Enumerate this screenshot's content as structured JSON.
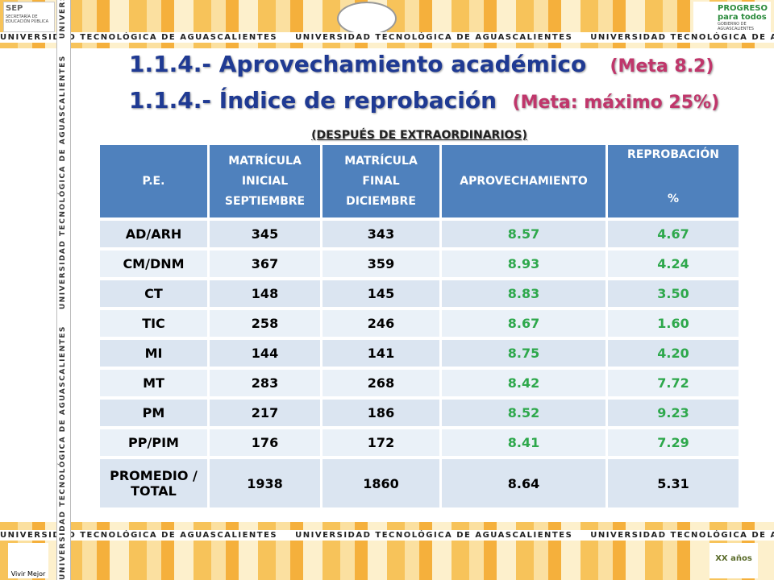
{
  "banner": {
    "text": "UNIVERSIDAD TECNOLÓGICA DE AGUASCALIENTES"
  },
  "logos": {
    "sep": "SEP",
    "sep_sub": "SECRETARÍA DE EDUCACIÓN PÚBLICA",
    "progreso": "PROGRESO para todos",
    "gobierno": "GOBIERNO DE AGUASCALIENTES",
    "vivir": "Vivir Mejor",
    "xx": "XX años"
  },
  "title": {
    "line1": "1.1.4.- Aprovechamiento académico",
    "meta1": "(Meta 8.2)",
    "line2": "1.1.4.- Índice de reprobación",
    "meta2": "(Meta: máximo 25%)",
    "subtitle": "(DESPUÉS DE EXTRAORDINARIOS)"
  },
  "table": {
    "header": [
      [
        "P.E."
      ],
      [
        "MATRÍCULA",
        "INICIAL",
        "SEPTIEMBRE"
      ],
      [
        "MATRÍCULA",
        "FINAL",
        "DICIEMBRE"
      ],
      [
        "APROVECHAMIENTO"
      ],
      [
        "REPROBACIÓN",
        "%"
      ]
    ],
    "rows": [
      [
        "AD/ARH",
        "345",
        "343",
        "8.57",
        "4.67"
      ],
      [
        "CM/DNM",
        "367",
        "359",
        "8.93",
        "4.24"
      ],
      [
        "CT",
        "148",
        "145",
        "8.83",
        "3.50"
      ],
      [
        "TIC",
        "258",
        "246",
        "8.67",
        "1.60"
      ],
      [
        "MI",
        "144",
        "141",
        "8.75",
        "4.20"
      ],
      [
        "MT",
        "283",
        "268",
        "8.42",
        "7.72"
      ],
      [
        "PM",
        "217",
        "186",
        "8.52",
        "9.23"
      ],
      [
        "PP/PIM",
        "176",
        "172",
        "8.41",
        "7.29"
      ]
    ],
    "total": [
      [
        "PROMEDIO /",
        "TOTAL"
      ],
      "1938",
      "1860",
      "8.64",
      "5.31"
    ]
  }
}
